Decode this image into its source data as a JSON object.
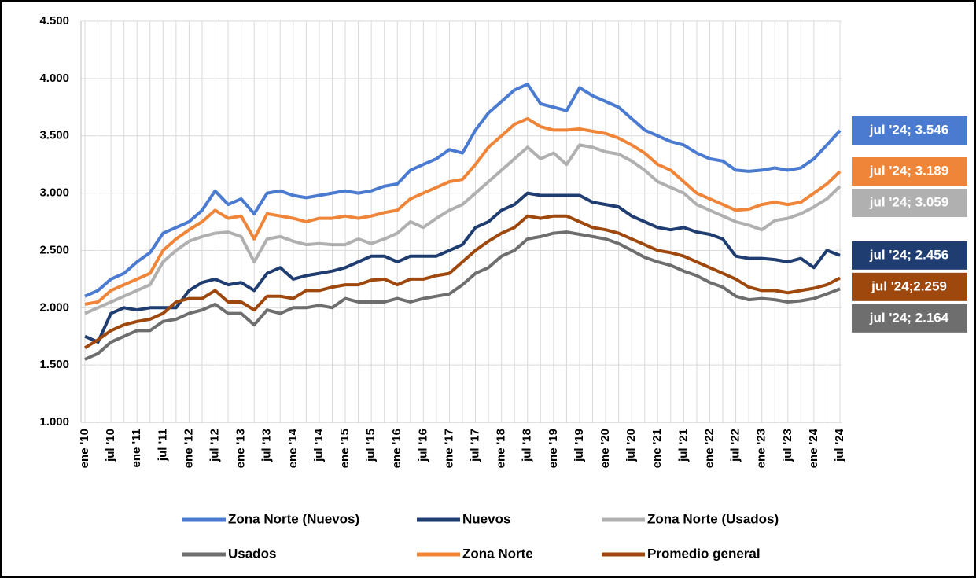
{
  "chart_data": {
    "type": "line",
    "categories": [
      "ene '10",
      null,
      "jul '10",
      null,
      "ene '11",
      null,
      "jul '11",
      null,
      "ene '12",
      null,
      "jul '12",
      null,
      "ene '13",
      null,
      "jul '13",
      null,
      "ene '14",
      null,
      "jul '14",
      null,
      "ene '15",
      null,
      "jul '15",
      null,
      "ene '16",
      null,
      "jul '16",
      null,
      "ene '17",
      null,
      "jul '17",
      null,
      "ene '18",
      null,
      "jul '18",
      null,
      "ene '19",
      null,
      "jul '19",
      null,
      "ene '20",
      null,
      "jul '20",
      null,
      "ene '21",
      null,
      "jul '21",
      null,
      "ene '22",
      null,
      "jul '22",
      null,
      "ene '23",
      null,
      "jul '23",
      null,
      "ene '24",
      null,
      "jul '24"
    ],
    "ylim": [
      1000,
      4500
    ],
    "yticks": [
      {
        "value": 1000,
        "label": "1.000"
      },
      {
        "value": 1500,
        "label": "1.500"
      },
      {
        "value": 2000,
        "label": "2.000"
      },
      {
        "value": 2500,
        "label": "2.500"
      },
      {
        "value": 3000,
        "label": "3.000"
      },
      {
        "value": 3500,
        "label": "3.500"
      },
      {
        "value": 4000,
        "label": "4.000"
      },
      {
        "value": 4500,
        "label": "4.500"
      }
    ],
    "grid": true,
    "series": [
      {
        "name": "Zona Norte (Nuevos)",
        "color": "#4a7bd0",
        "values": [
          2100,
          2150,
          2250,
          2300,
          2400,
          2480,
          2650,
          2700,
          2750,
          2850,
          3020,
          2900,
          2950,
          2820,
          3000,
          3020,
          2980,
          2960,
          2980,
          3000,
          3020,
          3000,
          3020,
          3060,
          3080,
          3200,
          3250,
          3300,
          3380,
          3350,
          3550,
          3700,
          3800,
          3900,
          3950,
          3780,
          3750,
          3720,
          3920,
          3850,
          3800,
          3750,
          3650,
          3550,
          3500,
          3450,
          3420,
          3350,
          3300,
          3280,
          3200,
          3190,
          3200,
          3220,
          3200,
          3220,
          3300,
          3420,
          3546
        ],
        "value_labels": [
          null,
          null,
          null,
          null,
          null,
          null,
          null,
          null,
          null,
          null,
          null,
          null,
          null,
          null,
          null,
          null,
          null,
          null,
          null,
          null,
          null,
          null,
          null,
          null,
          null,
          null,
          null,
          null,
          null,
          null,
          null,
          null,
          null,
          null,
          null,
          null,
          null,
          null,
          null,
          null,
          null,
          null,
          null,
          null,
          null,
          null,
          null,
          null,
          null,
          null,
          null,
          null,
          null,
          null,
          null,
          null,
          null,
          null,
          "jul '24;  3.546"
        ]
      },
      {
        "name": "Nuevos",
        "color": "#1f3d70",
        "values": [
          1750,
          1700,
          1950,
          2000,
          1980,
          2000,
          2000,
          2000,
          2150,
          2220,
          2250,
          2200,
          2220,
          2150,
          2300,
          2350,
          2250,
          2280,
          2300,
          2320,
          2350,
          2400,
          2450,
          2450,
          2400,
          2450,
          2450,
          2450,
          2500,
          2550,
          2700,
          2750,
          2850,
          2900,
          3000,
          2980,
          2980,
          2980,
          2980,
          2920,
          2900,
          2880,
          2800,
          2750,
          2700,
          2680,
          2700,
          2660,
          2640,
          2600,
          2450,
          2430,
          2430,
          2420,
          2400,
          2430,
          2350,
          2500,
          2456
        ],
        "value_labels": [
          null,
          null,
          null,
          null,
          null,
          null,
          null,
          null,
          null,
          null,
          null,
          null,
          null,
          null,
          null,
          null,
          null,
          null,
          null,
          null,
          null,
          null,
          null,
          null,
          null,
          null,
          null,
          null,
          null,
          null,
          null,
          null,
          null,
          null,
          null,
          null,
          null,
          null,
          null,
          null,
          null,
          null,
          null,
          null,
          null,
          null,
          null,
          null,
          null,
          null,
          null,
          null,
          null,
          null,
          null,
          null,
          null,
          null,
          "jul '24;  2.456"
        ]
      },
      {
        "name": "Zona Norte (Usados)",
        "color": "#b0b0b0",
        "values": [
          1950,
          2000,
          2050,
          2100,
          2150,
          2200,
          2400,
          2500,
          2580,
          2620,
          2650,
          2660,
          2620,
          2400,
          2600,
          2620,
          2580,
          2550,
          2560,
          2550,
          2550,
          2600,
          2560,
          2600,
          2650,
          2750,
          2700,
          2780,
          2850,
          2900,
          3000,
          3100,
          3200,
          3300,
          3400,
          3300,
          3350,
          3250,
          3420,
          3400,
          3360,
          3340,
          3280,
          3200,
          3100,
          3050,
          3000,
          2900,
          2850,
          2800,
          2750,
          2720,
          2680,
          2760,
          2780,
          2820,
          2880,
          2950,
          3059
        ],
        "value_labels": [
          null,
          null,
          null,
          null,
          null,
          null,
          null,
          null,
          null,
          null,
          null,
          null,
          null,
          null,
          null,
          null,
          null,
          null,
          null,
          null,
          null,
          null,
          null,
          null,
          null,
          null,
          null,
          null,
          null,
          null,
          null,
          null,
          null,
          null,
          null,
          null,
          null,
          null,
          null,
          null,
          null,
          null,
          null,
          null,
          null,
          null,
          null,
          null,
          null,
          null,
          null,
          null,
          null,
          null,
          null,
          null,
          null,
          null,
          "jul '24;  3.059"
        ]
      },
      {
        "name": "Usados",
        "color": "#6e6e6e",
        "values": [
          1550,
          1600,
          1700,
          1750,
          1800,
          1800,
          1880,
          1900,
          1950,
          1980,
          2030,
          1950,
          1950,
          1850,
          1980,
          1950,
          2000,
          2000,
          2020,
          2000,
          2080,
          2050,
          2050,
          2050,
          2080,
          2050,
          2080,
          2100,
          2120,
          2200,
          2300,
          2350,
          2450,
          2500,
          2600,
          2620,
          2650,
          2660,
          2640,
          2620,
          2600,
          2560,
          2500,
          2440,
          2400,
          2370,
          2320,
          2280,
          2220,
          2180,
          2100,
          2070,
          2080,
          2070,
          2050,
          2060,
          2080,
          2120,
          2164
        ],
        "value_labels": [
          null,
          null,
          null,
          null,
          null,
          null,
          null,
          null,
          null,
          null,
          null,
          null,
          null,
          null,
          null,
          null,
          null,
          null,
          null,
          null,
          null,
          null,
          null,
          null,
          null,
          null,
          null,
          null,
          null,
          null,
          null,
          null,
          null,
          null,
          null,
          null,
          null,
          null,
          null,
          null,
          null,
          null,
          null,
          null,
          null,
          null,
          null,
          null,
          null,
          null,
          null,
          null,
          null,
          null,
          null,
          null,
          null,
          null,
          "jul '24;  2.164"
        ]
      },
      {
        "name": "Zona Norte",
        "color": "#ef8539",
        "values": [
          2030,
          2050,
          2150,
          2200,
          2250,
          2300,
          2500,
          2600,
          2680,
          2750,
          2850,
          2780,
          2800,
          2600,
          2820,
          2800,
          2780,
          2750,
          2780,
          2780,
          2800,
          2780,
          2800,
          2830,
          2850,
          2950,
          3000,
          3050,
          3100,
          3120,
          3250,
          3400,
          3500,
          3600,
          3650,
          3580,
          3550,
          3550,
          3560,
          3540,
          3520,
          3480,
          3420,
          3350,
          3250,
          3200,
          3100,
          3000,
          2950,
          2900,
          2850,
          2860,
          2900,
          2920,
          2900,
          2920,
          3000,
          3080,
          3189
        ],
        "value_labels": [
          null,
          null,
          null,
          null,
          null,
          null,
          null,
          null,
          null,
          null,
          null,
          null,
          null,
          null,
          null,
          null,
          null,
          null,
          null,
          null,
          null,
          null,
          null,
          null,
          null,
          null,
          null,
          null,
          null,
          null,
          null,
          null,
          null,
          null,
          null,
          null,
          null,
          null,
          null,
          null,
          null,
          null,
          null,
          null,
          null,
          null,
          null,
          null,
          null,
          null,
          null,
          null,
          null,
          null,
          null,
          null,
          null,
          null,
          "jul '24;  3.189"
        ]
      },
      {
        "name": "Promedio general",
        "color": "#9e480e",
        "values": [
          1650,
          1720,
          1800,
          1850,
          1880,
          1900,
          1950,
          2050,
          2080,
          2080,
          2150,
          2050,
          2050,
          1980,
          2100,
          2100,
          2080,
          2150,
          2150,
          2180,
          2200,
          2200,
          2240,
          2250,
          2200,
          2250,
          2250,
          2280,
          2300,
          2400,
          2500,
          2580,
          2650,
          2700,
          2800,
          2780,
          2800,
          2800,
          2750,
          2700,
          2680,
          2650,
          2600,
          2550,
          2500,
          2480,
          2450,
          2400,
          2350,
          2300,
          2250,
          2180,
          2150,
          2150,
          2130,
          2150,
          2170,
          2200,
          2259
        ],
        "value_labels": [
          null,
          null,
          null,
          null,
          null,
          null,
          null,
          null,
          null,
          null,
          null,
          null,
          null,
          null,
          null,
          null,
          null,
          null,
          null,
          null,
          null,
          null,
          null,
          null,
          null,
          null,
          null,
          null,
          null,
          null,
          null,
          null,
          null,
          null,
          null,
          null,
          null,
          null,
          null,
          null,
          null,
          null,
          null,
          null,
          null,
          null,
          null,
          null,
          null,
          null,
          null,
          null,
          null,
          null,
          null,
          null,
          null,
          null,
          "jul '24;2.259"
        ]
      }
    ]
  }
}
